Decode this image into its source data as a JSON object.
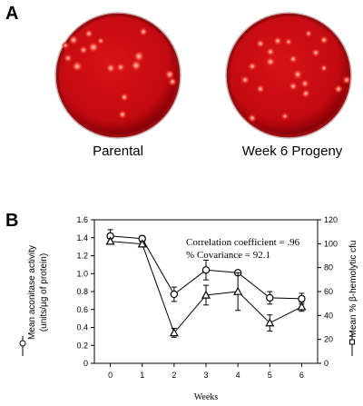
{
  "panel_a": {
    "letter": "A",
    "plates": [
      {
        "caption": "Parental"
      },
      {
        "caption": "Week 6 Progeny"
      }
    ]
  },
  "panel_b": {
    "letter": "B",
    "annotation_line1": "Correlation coefficient = .96",
    "annotation_line2": "% Covariance = 92.1"
  },
  "colors": {
    "agar": "#c80a12",
    "agar_dark": "#8a0008",
    "colony": "#ff8a80",
    "line": "#000000"
  },
  "chart_data": {
    "type": "line",
    "xlabel": "Weeks",
    "ylabel_left": "Mean aconitase activity (units/µg of protein)",
    "ylabel_right": "Mean % β-hemolytic cfu",
    "x": [
      0,
      1,
      2,
      3,
      4,
      5,
      6
    ],
    "x_ticks": [
      "0",
      "1",
      "2",
      "3",
      "4",
      "5",
      "6"
    ],
    "ylim_left": [
      0,
      1.6
    ],
    "y_ticks_left": [
      "0",
      "0.2",
      "0.4",
      "0.6",
      "0.8",
      "1.0",
      "1.2",
      "1.4",
      "1.6"
    ],
    "ylim_right": [
      0,
      120
    ],
    "y_ticks_right": [
      "0",
      "20",
      "40",
      "60",
      "80",
      "100",
      "120"
    ],
    "grid": false,
    "series": [
      {
        "marker": "circle",
        "axis": "left",
        "values": [
          1.42,
          1.39,
          0.77,
          1.04,
          1.01,
          0.73,
          0.72
        ],
        "errors": [
          0.07,
          0.03,
          0.08,
          0.11,
          0.02,
          0.07,
          0.06
        ]
      },
      {
        "marker": "triangle",
        "axis": "left",
        "values": [
          1.36,
          1.33,
          0.34,
          0.76,
          0.8,
          0.45,
          0.63
        ],
        "errors": [
          0.03,
          0.02,
          0.05,
          0.11,
          0.21,
          0.09,
          0.05
        ]
      }
    ]
  }
}
